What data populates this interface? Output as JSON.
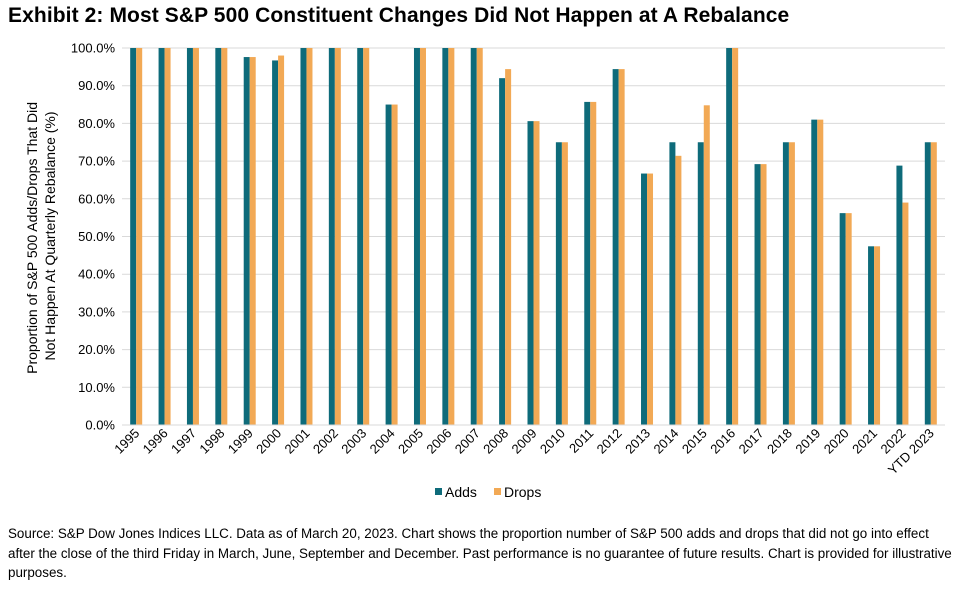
{
  "title": "Exhibit 2: Most S&P 500 Constituent Changes Did Not Happen at A Rebalance",
  "source": "Source: S&P Dow Jones Indices LLC. Data as of March 20, 2023. Chart shows the proportion number of S&P 500 adds and drops that did not go into effect after the close of the third Friday in March, June, September and December. Past performance is no guarantee of future results. Chart is provided for illustrative purposes.",
  "colors": {
    "adds": "#0e6b7a",
    "drops": "#f2a955",
    "grid": "#d9d9d9"
  },
  "chart_data": {
    "type": "bar",
    "ylabel": "Proportion of S&P 500 Adds/Drops That Did Not Happen At Quarterly Rebalance (%)",
    "ylabel_lines": [
      "Proportion of S&P 500 Adds/Drops That Did",
      "Not Happen At Quarterly Rebalance (%)"
    ],
    "ylim": [
      0,
      100
    ],
    "yticks": [
      "0.0%",
      "10.0%",
      "20.0%",
      "30.0%",
      "40.0%",
      "50.0%",
      "60.0%",
      "70.0%",
      "80.0%",
      "90.0%",
      "100.0%"
    ],
    "grid": true,
    "legend_position": "bottom",
    "categories": [
      "1995",
      "1996",
      "1997",
      "1998",
      "1999",
      "2000",
      "2001",
      "2002",
      "2003",
      "2004",
      "2005",
      "2006",
      "2007",
      "2008",
      "2009",
      "2010",
      "2011",
      "2012",
      "2013",
      "2014",
      "2015",
      "2016",
      "2017",
      "2018",
      "2019",
      "2020",
      "2021",
      "2022",
      "YTD 2023"
    ],
    "series": [
      {
        "name": "Adds",
        "values": [
          100,
          100,
          100,
          100,
          97.6,
          96.7,
          100,
          100,
          100,
          85,
          100,
          100,
          100,
          92,
          80.6,
          75,
          85.7,
          94.4,
          66.7,
          75,
          75,
          100,
          69.2,
          75,
          81,
          56.2,
          47.4,
          68.8,
          75
        ]
      },
      {
        "name": "Drops",
        "values": [
          100,
          100,
          100,
          100,
          97.6,
          98,
          100,
          100,
          100,
          85,
          100,
          100,
          100,
          94.4,
          80.6,
          75,
          85.7,
          94.4,
          66.7,
          71.4,
          84.8,
          100,
          69.2,
          75,
          81,
          56.2,
          47.4,
          59,
          75
        ]
      }
    ]
  }
}
